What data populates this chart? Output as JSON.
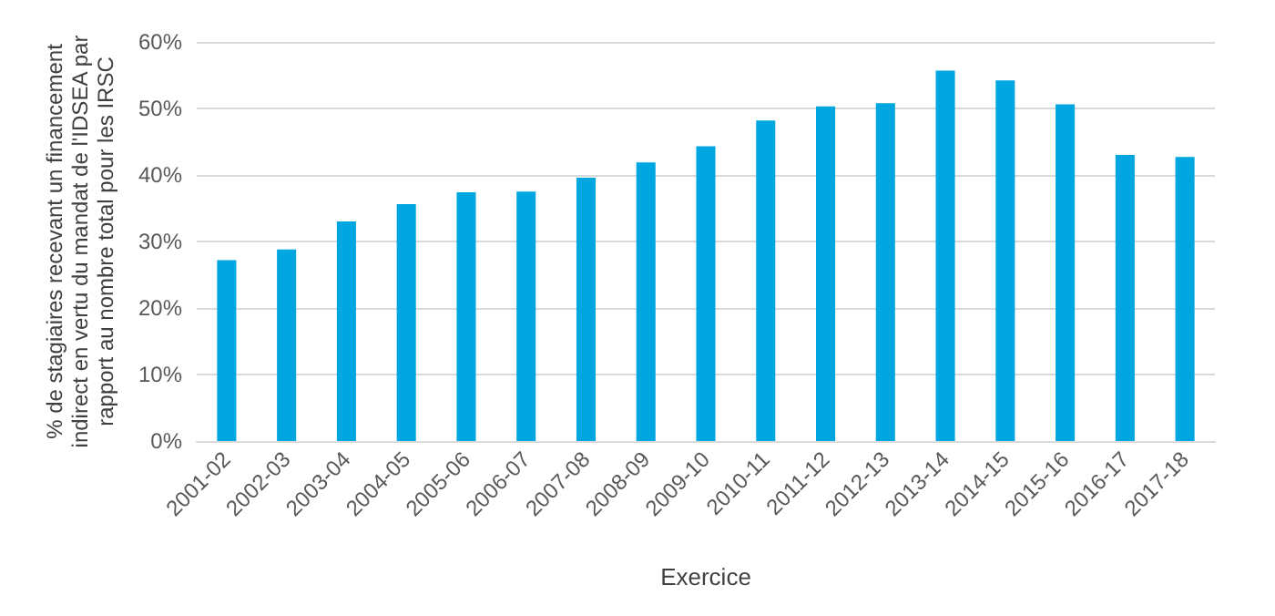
{
  "chart_data": {
    "type": "bar",
    "xlabel": "Exercice",
    "ylabel": "% de stagiaires recevant un financement indirect en vertu du mandat de l'IDSEA par rapport au nombre total pour les IRSC",
    "categories": [
      "2001-02",
      "2002-03",
      "2003-04",
      "2004-05",
      "2005-06",
      "2006-07",
      "2007-08",
      "2008-09",
      "2009-10",
      "2010-11",
      "2011-12",
      "2012-13",
      "2013-14",
      "2014-15",
      "2015-16",
      "2016-17",
      "2017-18"
    ],
    "values": [
      27.2,
      28.8,
      33.0,
      35.6,
      37.4,
      37.5,
      39.6,
      41.9,
      44.3,
      48.2,
      50.3,
      50.8,
      55.7,
      54.2,
      50.6,
      43.0,
      42.7
    ],
    "color": "#00a6e0",
    "ylim": [
      0,
      60
    ],
    "yticks": [
      {
        "value": 0,
        "label": "0%"
      },
      {
        "value": 10,
        "label": "10%"
      },
      {
        "value": 20,
        "label": "20%"
      },
      {
        "value": 30,
        "label": "30%"
      },
      {
        "value": 40,
        "label": "40%"
      },
      {
        "value": 50,
        "label": "50%"
      },
      {
        "value": 60,
        "label": "60%"
      }
    ],
    "grid": "y"
  }
}
